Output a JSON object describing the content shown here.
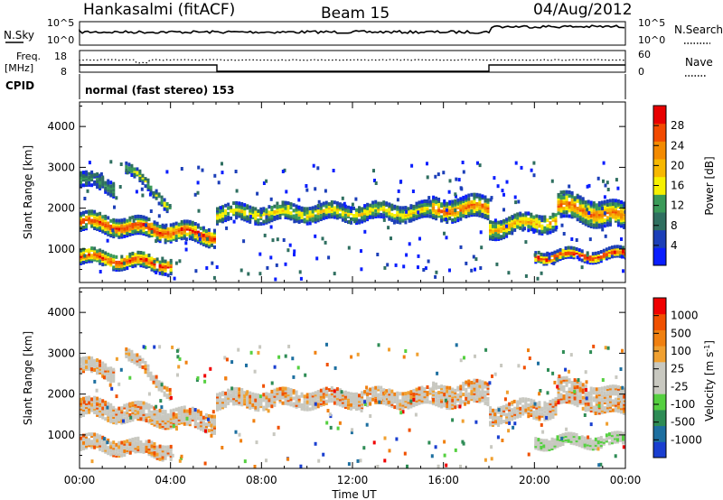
{
  "header": {
    "station": "Hankasalmi (fitACF)",
    "beam": "Beam 15",
    "date": "04/Aug/2012"
  },
  "strip": {
    "nsky_label": "N.Sky",
    "nsky_ticks": [
      "10^5",
      "10^0"
    ],
    "nsearch_label": "N.Search",
    "nsearch_ticks": [
      "10^5",
      "10^0"
    ],
    "freq_label_1": "Freq.",
    "freq_label_2": "[MHz]",
    "freq_ticks": [
      "18",
      "8"
    ],
    "nave_label": "Nave",
    "nave_ticks": [
      "60",
      "0"
    ],
    "cpid_label": "CPID",
    "cpid_text": "normal (fast stereo) 153"
  },
  "time_axis": {
    "label": "Time UT",
    "ticks": [
      "00:00",
      "04:00",
      "08:00",
      "12:00",
      "16:00",
      "20:00",
      "00:00"
    ]
  },
  "chart_data": [
    {
      "type": "heatmap",
      "name": "power",
      "ylabel": "Slant Range [km]",
      "yticks": [
        "4000",
        "3000",
        "2000",
        "1000"
      ],
      "ylim": [
        180,
        4600
      ],
      "xlim_hours": [
        0,
        24
      ],
      "colorbar_label": "Power [dB]",
      "colorbar_ticks": [
        "28",
        "24",
        "20",
        "16",
        "12",
        "8",
        "4"
      ],
      "colorbar_colors": [
        "#0a1eff",
        "#1c3fb8",
        "#2f6f60",
        "#3a9a58",
        "#f6f000",
        "#f7b800",
        "#f38a00",
        "#f24a00",
        "#e80000"
      ]
    },
    {
      "type": "heatmap",
      "name": "velocity",
      "ylabel": "Slant Range [km]",
      "yticks": [
        "4000",
        "3000",
        "2000",
        "1000"
      ],
      "ylim": [
        180,
        4600
      ],
      "xlim_hours": [
        0,
        24
      ],
      "colorbar_label": "Velocity [m s",
      "colorbar_sup": "-1",
      "colorbar_label_end": "]",
      "colorbar_ticks": [
        "1000",
        "500",
        "100",
        "25",
        "-25",
        "-100",
        "-500",
        "-1000"
      ],
      "colorbar_colors": [
        "#1a3fd0",
        "#1d6fa0",
        "#2e8c55",
        "#55d040",
        "#c8c8c0",
        "#c8c8c0",
        "#f0a030",
        "#f08010",
        "#f05000",
        "#f00000"
      ]
    }
  ]
}
